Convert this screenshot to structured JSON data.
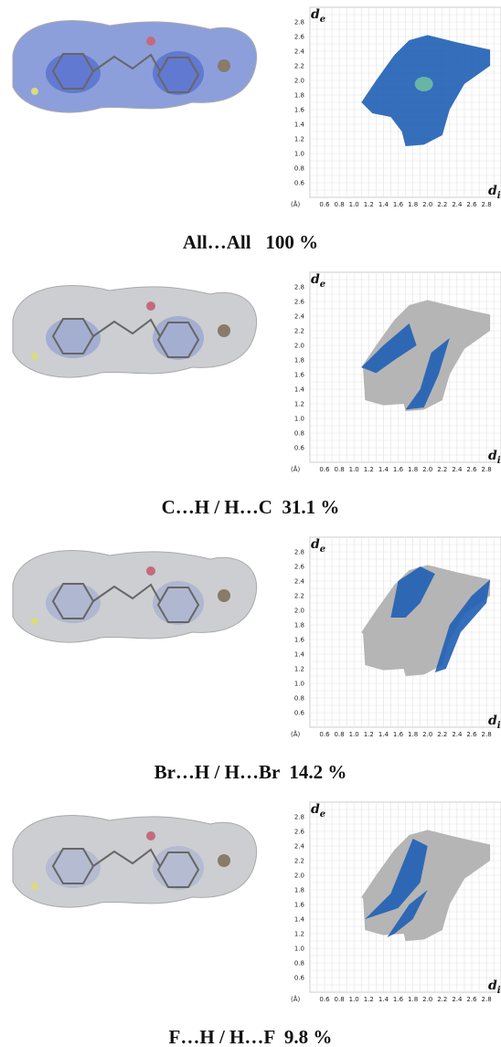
{
  "plot": {
    "axis_label": "d",
    "x_sub": "i",
    "y_sub": "e",
    "unit": "(Å)",
    "ticks": [
      "0.6",
      "0.8",
      "1.0",
      "1.2",
      "1.4",
      "1.6",
      "1.8",
      "2.0",
      "2.2",
      "2.4",
      "2.6",
      "2.8"
    ]
  },
  "panels": [
    {
      "caption": "All…All   100 %"
    },
    {
      "caption": "C…H / H…C  31.1 %"
    },
    {
      "caption": "Br…H / H…Br  14.2 %"
    },
    {
      "caption": "F…H / H…F  9.8 %"
    }
  ]
}
